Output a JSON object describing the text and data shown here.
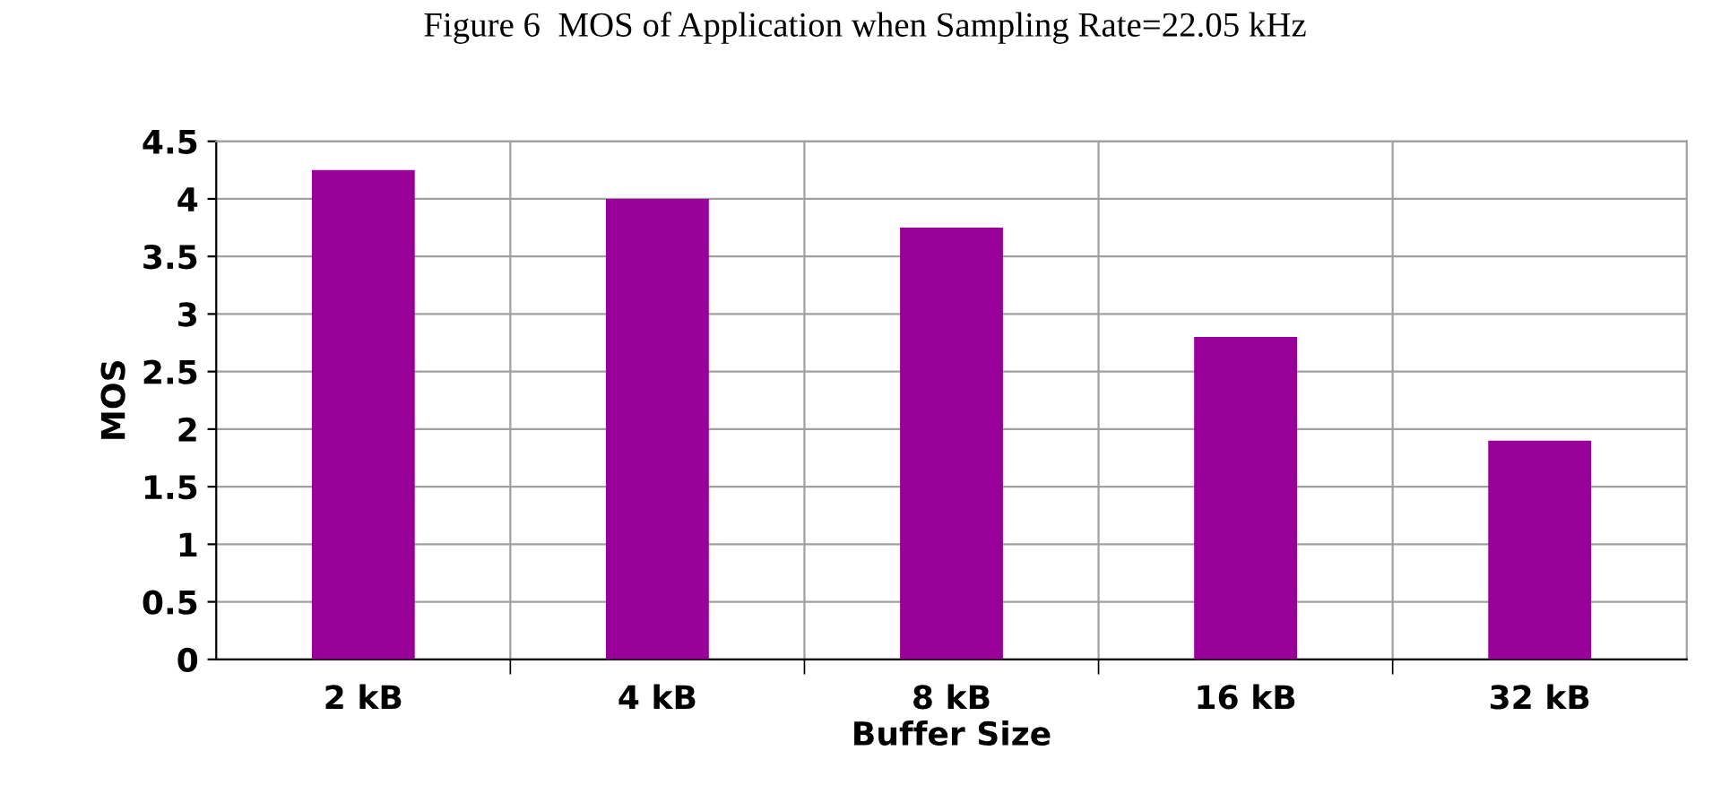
{
  "chart_data": {
    "type": "bar",
    "title": "Figure 6  MOS of Application when Sampling Rate=22.05 kHz",
    "xlabel": "Buffer Size",
    "ylabel": "MOS",
    "categories": [
      "2 kB",
      "4 kB",
      "8 kB",
      "16 kB",
      "32 kB"
    ],
    "values": [
      4.25,
      4.0,
      3.75,
      2.8,
      1.9
    ],
    "color": "#990099",
    "ylim": [
      0,
      4.5
    ],
    "yticks": [
      0,
      0.5,
      1,
      1.5,
      2,
      2.5,
      3,
      3.5,
      4,
      4.5
    ],
    "grid": true
  }
}
